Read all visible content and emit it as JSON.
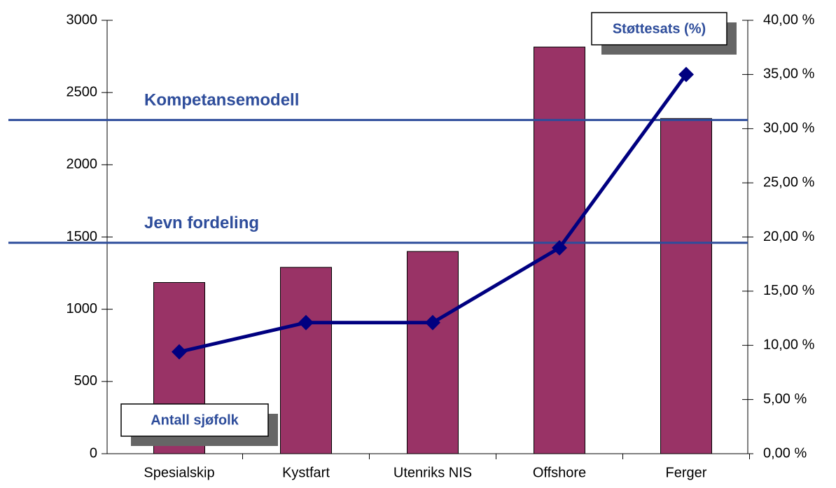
{
  "chart_data": {
    "type": "bar_line",
    "categories": [
      "Spesialskip",
      "Kystfart",
      "Utenriks NIS",
      "Offshore",
      "Ferger"
    ],
    "series": [
      {
        "name": "Antall sjøfolk",
        "color": "#993366",
        "values": [
          1185,
          1290,
          1400,
          2815,
          2320
        ]
      },
      {
        "name": "Støttesats (%)",
        "color": "#000080",
        "axis": "y2",
        "values": [
          9.4,
          12.1,
          12.1,
          19,
          35
        ]
      }
    ],
    "ylim": [
      0,
      3000
    ],
    "yticks": [
      0,
      500,
      1000,
      1500,
      2000,
      2500,
      3000
    ],
    "y2lim": [
      0,
      40
    ],
    "y2ticks": [
      {
        "value": 0,
        "label": "0,00 %"
      },
      {
        "value": 5,
        "label": "5,00 %"
      },
      {
        "value": 10,
        "label": "10,00 %"
      },
      {
        "value": 15,
        "label": "15,00 %"
      },
      {
        "value": 20,
        "label": "20,00 %"
      },
      {
        "value": 25,
        "label": "25,00 %"
      },
      {
        "value": 30,
        "label": "30,00 %"
      },
      {
        "value": 35,
        "label": "35,00 %"
      },
      {
        "value": 40,
        "label": "40,00 %"
      }
    ],
    "reference_lines": [
      {
        "label": "Kompetansemodell",
        "value": 2310,
        "color": "#2e4d9b"
      },
      {
        "label": "Jevn fordeling",
        "value": 1460,
        "color": "#2e4d9b"
      }
    ]
  }
}
